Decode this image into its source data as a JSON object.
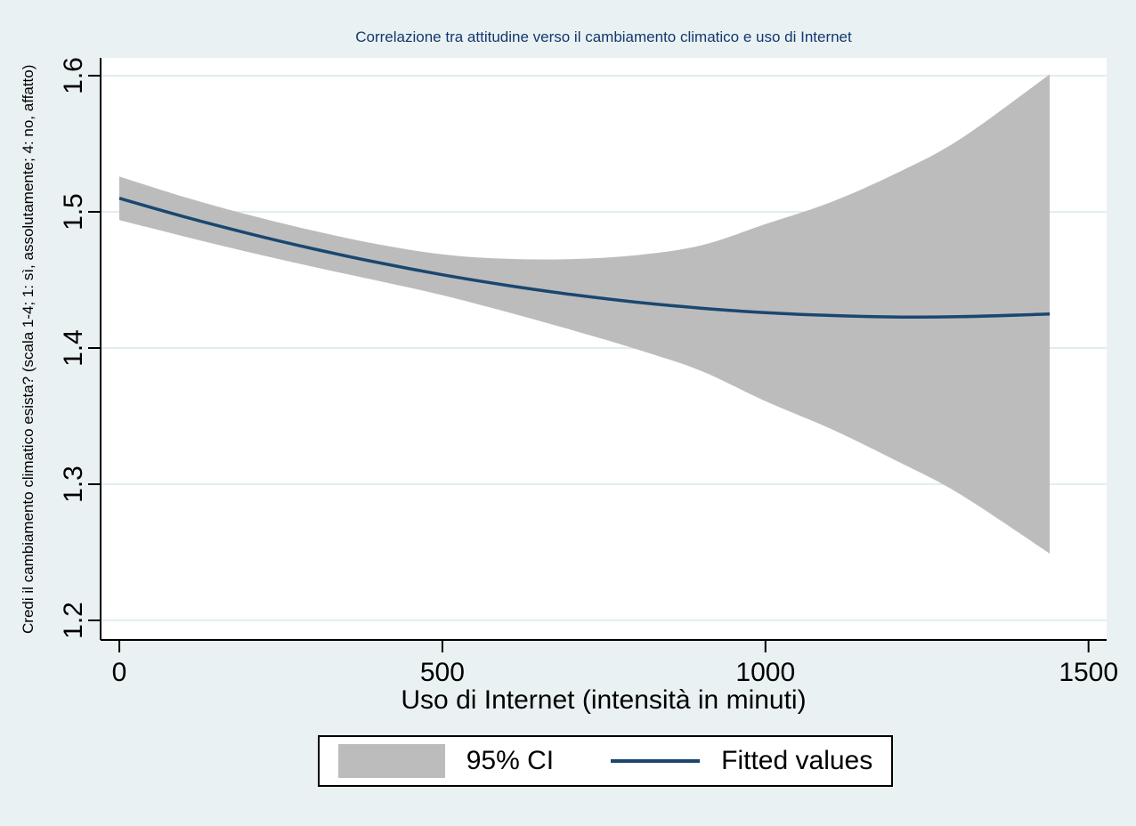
{
  "page": {
    "background": "#eaf1f3"
  },
  "chart": {
    "title": "Correlazione tra attitudine verso il cambiamento climatico e uso di Internet",
    "x_axis": {
      "label": "Uso di Internet (intensità in minuti)"
    },
    "y_axis": {
      "label": "Credi il cambiamento climatico esista? (scala 1-4; 1: sì, assolutamente; 4: no, affatto)"
    },
    "legend": {
      "ci_label": "95% CI",
      "fit_label": "Fitted values"
    },
    "colors": {
      "background": "#eaf1f3",
      "plot_background": "#ffffff",
      "grid": "#e2edf0",
      "axis": "#000000",
      "tick_text": "#000000",
      "title_text": "#13386c",
      "fit_line": "#1a476f",
      "ci_fill": "#bcbcbc"
    }
  },
  "chart_data": {
    "type": "line",
    "title": "Correlazione tra attitudine verso il cambiamento climatico e uso di Internet",
    "xlabel": "Uso di Internet (intensità in minuti)",
    "ylabel": "Credi il cambiamento climatico esista? (scala 1-4; 1: sì, assolutamente; 4: no, affatto)",
    "x": [
      0,
      100,
      200,
      300,
      400,
      500,
      600,
      700,
      800,
      900,
      1000,
      1100,
      1200,
      1300,
      1440
    ],
    "series": [
      {
        "name": "Fitted values",
        "kind": "line",
        "values": [
          1.51,
          1.4965,
          1.4841,
          1.4729,
          1.4628,
          1.4538,
          1.446,
          1.4393,
          1.4337,
          1.4293,
          1.426,
          1.4239,
          1.4228,
          1.423,
          1.425
        ]
      },
      {
        "name": "95% CI",
        "kind": "band",
        "upper": [
          1.526,
          1.511,
          1.4978,
          1.4862,
          1.4762,
          1.4688,
          1.4655,
          1.4653,
          1.4682,
          1.4753,
          1.491,
          1.5069,
          1.5278,
          1.553,
          1.601
        ],
        "lower": [
          1.494,
          1.482,
          1.4704,
          1.4596,
          1.4494,
          1.4388,
          1.4265,
          1.4133,
          1.3992,
          1.3833,
          1.361,
          1.3409,
          1.3178,
          1.293,
          1.249
        ]
      }
    ],
    "x_ticks": [
      0,
      500,
      1000,
      1500
    ],
    "x_tick_labels": [
      "0",
      "500",
      "1000",
      "1500"
    ],
    "y_ticks": [
      1.2,
      1.3,
      1.4,
      1.5,
      1.6
    ],
    "y_tick_labels": [
      "1.2",
      "1.3",
      "1.4",
      "1.5",
      "1.6"
    ],
    "xlim": [
      -29,
      1528
    ],
    "ylim": [
      1.1856,
      1.6131
    ],
    "grid": true,
    "legend_position": "bottom"
  }
}
